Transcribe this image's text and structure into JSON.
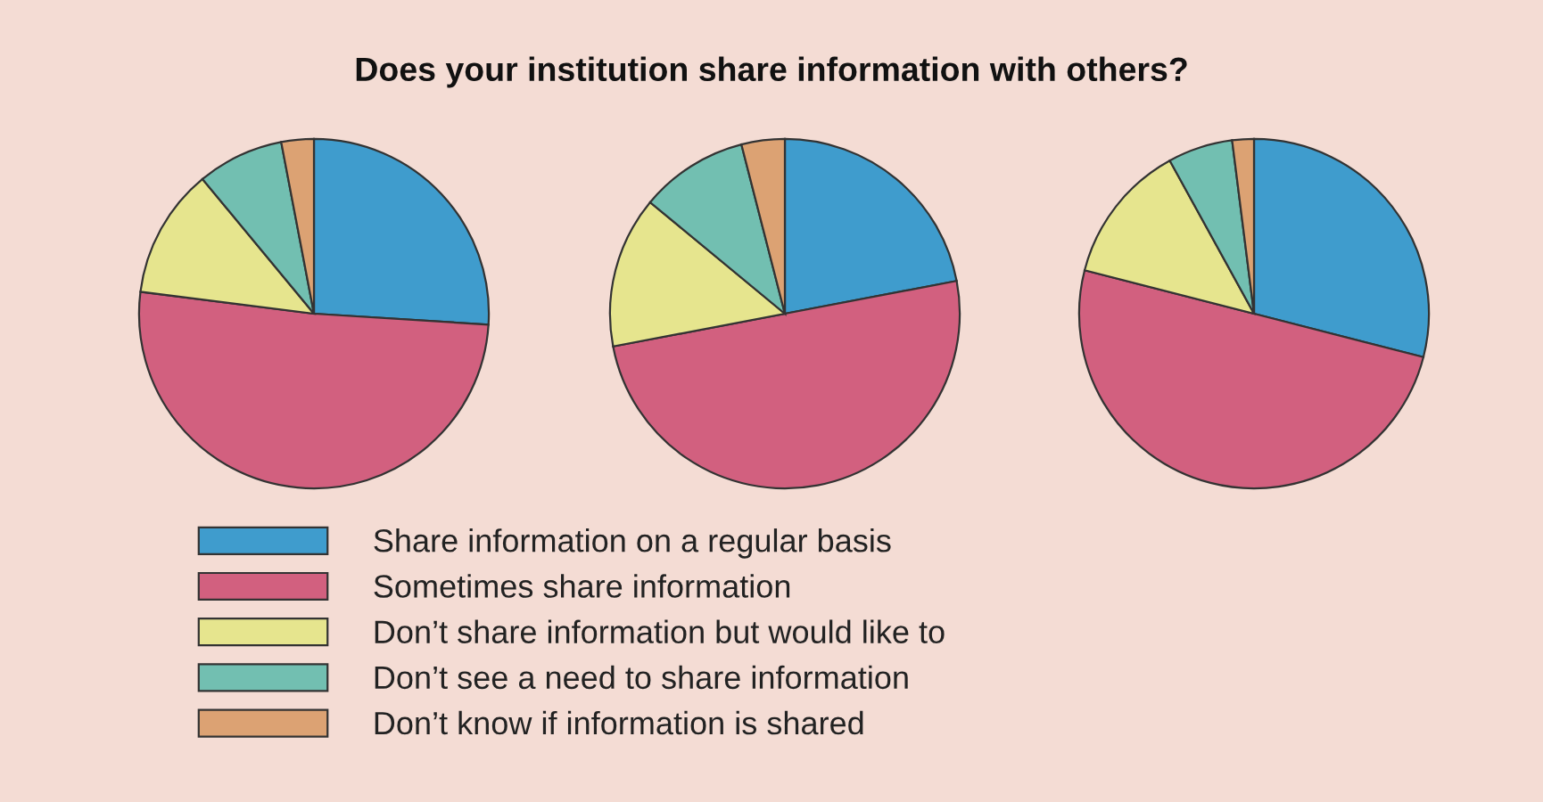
{
  "chart_data": [
    {
      "type": "pie",
      "title": "Does your institution share information with others?",
      "categories": [
        "Share information on a regular basis",
        "Sometimes share information",
        "Don’t share information but would like to",
        "Don’t see a need to share information",
        "Don’t know if information is shared"
      ],
      "values": [
        26,
        51,
        12,
        8,
        3
      ],
      "colors": [
        "#3f9ccd",
        "#d2607f",
        "#e6e58e",
        "#72bfb1",
        "#dca273"
      ],
      "legend": "bottom"
    },
    {
      "type": "pie",
      "values": [
        22,
        50,
        14,
        10,
        4
      ],
      "colors": [
        "#3f9ccd",
        "#d2607f",
        "#e6e58e",
        "#72bfb1",
        "#dca273"
      ]
    },
    {
      "type": "pie",
      "values": [
        29,
        50,
        13,
        6,
        2
      ],
      "colors": [
        "#3f9ccd",
        "#d2607f",
        "#e6e58e",
        "#72bfb1",
        "#dca273"
      ]
    }
  ]
}
